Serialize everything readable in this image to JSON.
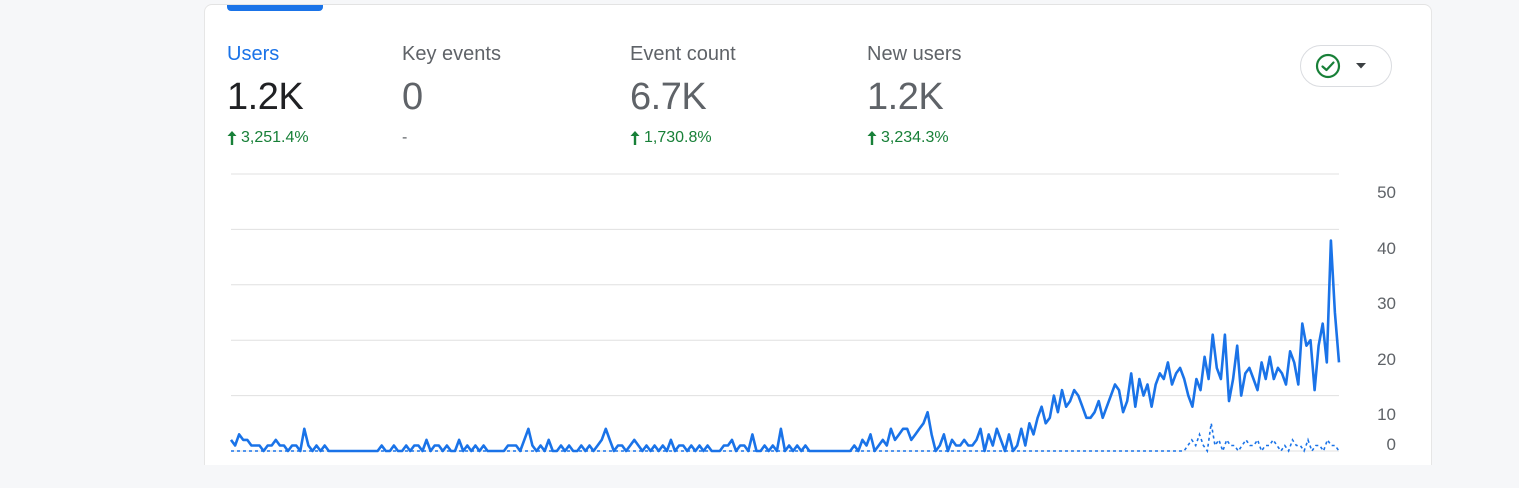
{
  "metrics": [
    {
      "label": "Users",
      "value": "1.2K",
      "change": "3,251.4%",
      "trend": "up",
      "active": true
    },
    {
      "label": "Key events",
      "value": "0",
      "change": "-",
      "trend": "none",
      "active": false
    },
    {
      "label": "Event count",
      "value": "6.7K",
      "change": "1,730.8%",
      "trend": "up",
      "active": false
    },
    {
      "label": "New users",
      "value": "1.2K",
      "change": "3,234.3%",
      "trend": "up",
      "active": false
    }
  ],
  "compare_button": {
    "icon": "check-circle-icon",
    "dropdown_icon": "caret-down-icon"
  },
  "colors": {
    "accent": "#1a73e8",
    "positive": "#188038",
    "muted": "#5f6368"
  },
  "chart_data": {
    "type": "line",
    "title": "",
    "xlabel": "",
    "ylabel": "",
    "ylim": [
      0,
      50
    ],
    "y_ticks": [
      "0",
      "10",
      "20",
      "30",
      "40",
      "50"
    ],
    "grid": true,
    "series": [
      {
        "style": "solid",
        "values": [
          2,
          1,
          3,
          2,
          2,
          1,
          1,
          1,
          0,
          1,
          1,
          2,
          1,
          1,
          0,
          1,
          1,
          0,
          4,
          1,
          0,
          1,
          0,
          1,
          0,
          0,
          0,
          0,
          0,
          0,
          0,
          0,
          0,
          0,
          0,
          0,
          0,
          1,
          0,
          0,
          1,
          0,
          0,
          1,
          0,
          1,
          1,
          0,
          2,
          0,
          1,
          1,
          0,
          1,
          0,
          0,
          2,
          0,
          1,
          0,
          1,
          0,
          1,
          0,
          0,
          0,
          0,
          0,
          1,
          1,
          1,
          0,
          2,
          4,
          1,
          0,
          1,
          0,
          2,
          0,
          0,
          1,
          0,
          1,
          0,
          0,
          1,
          0,
          1,
          0,
          1,
          2,
          4,
          2,
          0,
          1,
          1,
          0,
          1,
          2,
          1,
          0,
          1,
          0,
          1,
          0,
          1,
          0,
          2,
          0,
          1,
          1,
          0,
          1,
          0,
          1,
          0,
          1,
          0,
          0,
          0,
          1,
          1,
          2,
          0,
          1,
          1,
          0,
          3,
          0,
          0,
          1,
          0,
          1,
          0,
          4,
          0,
          1,
          0,
          1,
          0,
          1,
          0,
          0,
          0,
          0,
          0,
          0,
          0,
          0,
          0,
          0,
          0,
          1,
          0,
          2,
          1,
          3,
          0,
          1,
          2,
          1,
          4,
          2,
          3,
          4,
          4,
          2,
          3,
          4,
          5,
          7,
          3,
          0,
          1,
          3,
          0,
          2,
          1,
          1,
          2,
          1,
          1,
          2,
          4,
          0,
          3,
          1,
          4,
          2,
          0,
          3,
          0,
          1,
          4,
          1,
          5,
          3,
          6,
          8,
          5,
          6,
          10,
          7,
          11,
          8,
          9,
          11,
          10,
          8,
          6,
          6,
          7,
          9,
          6,
          8,
          10,
          12,
          11,
          7,
          9,
          14,
          8,
          13,
          10,
          12,
          8,
          12,
          14,
          13,
          16,
          12,
          14,
          15,
          13,
          10,
          8,
          13,
          11,
          17,
          13,
          21,
          15,
          13,
          21,
          9,
          13,
          19,
          10,
          14,
          15,
          13,
          11,
          16,
          13,
          17,
          13,
          15,
          14,
          12,
          18,
          16,
          12,
          23,
          19,
          20,
          11,
          19,
          23,
          16,
          38,
          25,
          16
        ]
      },
      {
        "style": "dashed",
        "values": [
          0,
          0,
          0,
          0,
          0,
          0,
          0,
          0,
          0,
          0,
          0,
          0,
          0,
          0,
          0,
          0,
          0,
          0,
          0,
          0,
          0,
          0,
          0,
          0,
          0,
          0,
          0,
          0,
          0,
          0,
          0,
          0,
          0,
          0,
          0,
          0,
          0,
          0,
          0,
          0,
          0,
          0,
          0,
          0,
          0,
          0,
          0,
          0,
          0,
          0,
          0,
          0,
          0,
          0,
          0,
          0,
          0,
          0,
          0,
          0,
          0,
          0,
          0,
          0,
          0,
          0,
          0,
          0,
          0,
          0,
          0,
          0,
          0,
          0,
          0,
          0,
          0,
          0,
          0,
          0,
          0,
          0,
          0,
          0,
          0,
          0,
          0,
          0,
          0,
          0,
          0,
          0,
          0,
          0,
          0,
          0,
          0,
          0,
          0,
          0,
          0,
          0,
          0,
          0,
          0,
          0,
          0,
          0,
          0,
          0,
          0,
          0,
          0,
          0,
          0,
          0,
          0,
          0,
          0,
          0,
          0,
          0,
          0,
          0,
          0,
          0,
          0,
          0,
          0,
          0,
          0,
          0,
          0,
          0,
          0,
          0,
          0,
          0,
          0,
          0,
          0,
          0,
          0,
          0,
          0,
          0,
          0,
          0,
          0,
          0,
          0,
          0,
          0,
          0,
          0,
          0,
          0,
          0,
          0,
          0,
          0,
          0,
          0,
          0,
          0,
          0,
          0,
          0,
          0,
          0,
          0,
          0,
          0,
          0,
          0,
          0,
          0,
          0,
          0,
          0,
          0,
          0,
          0,
          0,
          0,
          0,
          0,
          0,
          0,
          0,
          0,
          0,
          0,
          0,
          0,
          0,
          0,
          0,
          0,
          0,
          0,
          0,
          0,
          0,
          0,
          0,
          0,
          0,
          0,
          0,
          0,
          0,
          0,
          0,
          0,
          0,
          0,
          0,
          0,
          0,
          0,
          0,
          0,
          0,
          0,
          0,
          0,
          0,
          0,
          0,
          0,
          0,
          0,
          0,
          0,
          0,
          0,
          0,
          0,
          0,
          0,
          0,
          0,
          0,
          0,
          0,
          0,
          1,
          2,
          1,
          3,
          1,
          0,
          5,
          1,
          2,
          0,
          2,
          1,
          1,
          0,
          1,
          2,
          1,
          1,
          2,
          0,
          1,
          1,
          2,
          1,
          0,
          1,
          0,
          2,
          1,
          1,
          0,
          2,
          0,
          1,
          1,
          0,
          2,
          1,
          1,
          0
        ]
      }
    ]
  }
}
